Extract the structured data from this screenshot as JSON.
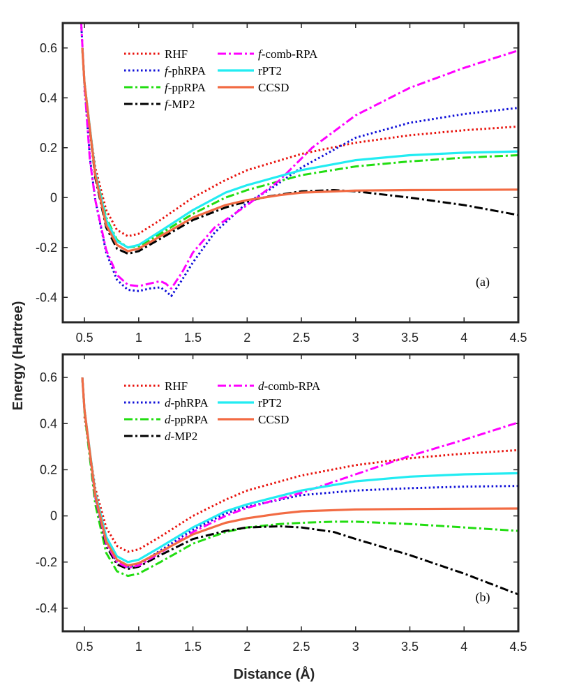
{
  "figure": {
    "ylabel": "Energy (Hartree)",
    "xlabel": "Distance (Å)"
  },
  "chart_data": [
    {
      "type": "line",
      "panel_label": "(a)",
      "xlim": [
        0.3,
        4.5
      ],
      "ylim": [
        -0.5,
        0.7
      ],
      "xticks": [
        0.5,
        1,
        1.5,
        2,
        2.5,
        3,
        3.5,
        4,
        4.5
      ],
      "xtick_labels": [
        "0.5",
        "1",
        "1.5",
        "2",
        "2.5",
        "3",
        "3.5",
        "4",
        "4.5"
      ],
      "yticks": [
        -0.4,
        -0.2,
        0,
        0.2,
        0.4,
        0.6
      ],
      "ytick_labels": [
        "-0.4",
        "-0.2",
        "0",
        "0.2",
        "0.4",
        "0.6"
      ],
      "legend_position": "top-left",
      "series": [
        {
          "name": "RHF",
          "color": "#e8120c",
          "style": "dotted",
          "x": [
            0.5,
            0.6,
            0.7,
            0.8,
            0.9,
            1.0,
            1.2,
            1.5,
            1.8,
            2.0,
            2.5,
            3.0,
            3.5,
            4.0,
            4.5
          ],
          "y": [
            0.43,
            0.12,
            -0.05,
            -0.13,
            -0.155,
            -0.145,
            -0.09,
            0.0,
            0.07,
            0.11,
            0.175,
            0.22,
            0.25,
            0.27,
            0.285
          ]
        },
        {
          "name": "f-phRPA",
          "name_prefix": "f",
          "name_rest": "-phRPA",
          "color": "#1010d8",
          "style": "dotted",
          "x": [
            0.47,
            0.5,
            0.55,
            0.6,
            0.7,
            0.8,
            0.9,
            1.0,
            1.1,
            1.2,
            1.25,
            1.3,
            1.4,
            1.5,
            1.7,
            2.0,
            2.2,
            2.5,
            3.0,
            3.5,
            4.0,
            4.5
          ],
          "y": [
            0.7,
            0.45,
            0.16,
            -0.01,
            -0.22,
            -0.33,
            -0.37,
            -0.375,
            -0.365,
            -0.36,
            -0.375,
            -0.395,
            -0.33,
            -0.26,
            -0.14,
            -0.02,
            0.03,
            0.12,
            0.24,
            0.3,
            0.335,
            0.36
          ]
        },
        {
          "name": "f-ppRPA",
          "name_prefix": "f",
          "name_rest": "-ppRPA",
          "color": "#22dd11",
          "style": "dashdot",
          "x": [
            0.48,
            0.5,
            0.6,
            0.7,
            0.8,
            0.9,
            1.0,
            1.2,
            1.5,
            1.8,
            2.0,
            2.5,
            3.0,
            3.5,
            4.0,
            4.5
          ],
          "y": [
            0.6,
            0.46,
            0.1,
            -0.08,
            -0.17,
            -0.2,
            -0.195,
            -0.145,
            -0.065,
            0.0,
            0.03,
            0.09,
            0.125,
            0.145,
            0.16,
            0.17
          ]
        },
        {
          "name": "f-MP2",
          "name_prefix": "f",
          "name_rest": "-MP2",
          "color": "#000000",
          "style": "dashdot",
          "x": [
            0.48,
            0.5,
            0.6,
            0.7,
            0.8,
            0.9,
            1.0,
            1.2,
            1.5,
            1.8,
            2.0,
            2.2,
            2.5,
            2.8,
            3.0,
            3.5,
            4.0,
            4.5
          ],
          "y": [
            0.6,
            0.46,
            0.08,
            -0.12,
            -0.205,
            -0.225,
            -0.215,
            -0.165,
            -0.09,
            -0.04,
            -0.015,
            0.005,
            0.025,
            0.03,
            0.025,
            0.0,
            -0.03,
            -0.07
          ]
        },
        {
          "name": "f-comb-RPA",
          "name_prefix": "f",
          "name_rest": "-comb-RPA",
          "color": "#ff00ff",
          "style": "dashdot",
          "x": [
            0.47,
            0.5,
            0.55,
            0.6,
            0.7,
            0.8,
            0.9,
            1.0,
            1.1,
            1.2,
            1.25,
            1.3,
            1.4,
            1.5,
            1.7,
            2.0,
            2.3,
            2.6,
            3.0,
            3.5,
            4.0,
            4.5
          ],
          "y": [
            0.7,
            0.45,
            0.15,
            -0.01,
            -0.21,
            -0.31,
            -0.35,
            -0.355,
            -0.345,
            -0.335,
            -0.345,
            -0.365,
            -0.3,
            -0.22,
            -0.12,
            -0.03,
            0.07,
            0.2,
            0.33,
            0.44,
            0.52,
            0.59
          ]
        },
        {
          "name": "rPT2",
          "color": "#22ecf2",
          "style": "solid",
          "x": [
            0.48,
            0.5,
            0.6,
            0.7,
            0.8,
            0.9,
            1.0,
            1.2,
            1.5,
            1.8,
            2.0,
            2.5,
            3.0,
            3.5,
            4.0,
            4.5
          ],
          "y": [
            0.6,
            0.46,
            0.1,
            -0.09,
            -0.175,
            -0.2,
            -0.19,
            -0.135,
            -0.05,
            0.02,
            0.05,
            0.11,
            0.15,
            0.17,
            0.18,
            0.185
          ]
        },
        {
          "name": "CCSD",
          "color": "#f26b43",
          "style": "solid",
          "x": [
            0.48,
            0.5,
            0.6,
            0.7,
            0.8,
            0.9,
            1.0,
            1.2,
            1.5,
            1.8,
            2.0,
            2.3,
            2.5,
            3.0,
            3.5,
            4.0,
            4.5
          ],
          "y": [
            0.6,
            0.46,
            0.09,
            -0.11,
            -0.19,
            -0.215,
            -0.205,
            -0.155,
            -0.08,
            -0.03,
            -0.01,
            0.01,
            0.02,
            0.028,
            0.03,
            0.031,
            0.032
          ]
        }
      ]
    },
    {
      "type": "line",
      "panel_label": "(b)",
      "xlim": [
        0.3,
        4.5
      ],
      "ylim": [
        -0.5,
        0.7
      ],
      "xticks": [
        0.5,
        1,
        1.5,
        2,
        2.5,
        3,
        3.5,
        4,
        4.5
      ],
      "xtick_labels": [
        "0.5",
        "1",
        "1.5",
        "2",
        "2.5",
        "3",
        "3.5",
        "4",
        "4.5"
      ],
      "yticks": [
        -0.4,
        -0.2,
        0,
        0.2,
        0.4,
        0.6
      ],
      "ytick_labels": [
        "-0.4",
        "-0.2",
        "0",
        "0.2",
        "0.4",
        "0.6"
      ],
      "legend_position": "top-left",
      "series": [
        {
          "name": "RHF",
          "color": "#e8120c",
          "style": "dotted",
          "x": [
            0.5,
            0.6,
            0.7,
            0.8,
            0.9,
            1.0,
            1.2,
            1.5,
            1.8,
            2.0,
            2.5,
            3.0,
            3.5,
            4.0,
            4.5
          ],
          "y": [
            0.43,
            0.12,
            -0.05,
            -0.13,
            -0.155,
            -0.145,
            -0.09,
            0.0,
            0.07,
            0.11,
            0.175,
            0.22,
            0.25,
            0.27,
            0.285
          ]
        },
        {
          "name": "d-phRPA",
          "name_prefix": "d",
          "name_rest": "-phRPA",
          "color": "#1010d8",
          "style": "dotted",
          "x": [
            0.48,
            0.5,
            0.6,
            0.7,
            0.8,
            0.9,
            1.0,
            1.2,
            1.5,
            1.8,
            2.0,
            2.5,
            3.0,
            3.5,
            4.0,
            4.5
          ],
          "y": [
            0.6,
            0.46,
            0.08,
            -0.12,
            -0.2,
            -0.22,
            -0.21,
            -0.15,
            -0.06,
            0.01,
            0.04,
            0.09,
            0.11,
            0.12,
            0.127,
            0.13
          ]
        },
        {
          "name": "d-ppRPA",
          "name_prefix": "d",
          "name_rest": "-ppRPA",
          "color": "#22dd11",
          "style": "dashdot",
          "x": [
            0.48,
            0.5,
            0.6,
            0.7,
            0.8,
            0.9,
            1.0,
            1.2,
            1.5,
            1.8,
            2.0,
            2.3,
            2.5,
            2.8,
            3.0,
            3.5,
            4.0,
            4.5
          ],
          "y": [
            0.6,
            0.45,
            0.05,
            -0.16,
            -0.24,
            -0.26,
            -0.25,
            -0.2,
            -0.12,
            -0.07,
            -0.05,
            -0.035,
            -0.03,
            -0.025,
            -0.025,
            -0.035,
            -0.05,
            -0.065
          ]
        },
        {
          "name": "d-MP2",
          "name_prefix": "d",
          "name_rest": "-MP2",
          "color": "#000000",
          "style": "dashdot",
          "x": [
            0.48,
            0.5,
            0.6,
            0.7,
            0.8,
            0.9,
            1.0,
            1.2,
            1.5,
            1.8,
            2.0,
            2.3,
            2.5,
            2.8,
            3.0,
            3.5,
            4.0,
            4.5
          ],
          "y": [
            0.6,
            0.46,
            0.08,
            -0.13,
            -0.21,
            -0.23,
            -0.22,
            -0.17,
            -0.1,
            -0.065,
            -0.05,
            -0.045,
            -0.05,
            -0.07,
            -0.1,
            -0.17,
            -0.25,
            -0.34
          ]
        },
        {
          "name": "d-comb-RPA",
          "name_prefix": "d",
          "name_rest": "-comb-RPA",
          "color": "#ff00ff",
          "style": "dashdot",
          "x": [
            0.48,
            0.5,
            0.6,
            0.7,
            0.8,
            0.9,
            1.0,
            1.2,
            1.5,
            1.8,
            2.0,
            2.5,
            3.0,
            3.5,
            4.0,
            4.5
          ],
          "y": [
            0.6,
            0.46,
            0.08,
            -0.12,
            -0.2,
            -0.225,
            -0.215,
            -0.16,
            -0.07,
            0.0,
            0.035,
            0.1,
            0.18,
            0.26,
            0.33,
            0.405
          ]
        },
        {
          "name": "rPT2",
          "color": "#22ecf2",
          "style": "solid",
          "x": [
            0.48,
            0.5,
            0.6,
            0.7,
            0.8,
            0.9,
            1.0,
            1.2,
            1.5,
            1.8,
            2.0,
            2.5,
            3.0,
            3.5,
            4.0,
            4.5
          ],
          "y": [
            0.6,
            0.46,
            0.1,
            -0.09,
            -0.175,
            -0.2,
            -0.19,
            -0.135,
            -0.05,
            0.02,
            0.05,
            0.11,
            0.15,
            0.17,
            0.18,
            0.185
          ]
        },
        {
          "name": "CCSD",
          "color": "#f26b43",
          "style": "solid",
          "x": [
            0.48,
            0.5,
            0.6,
            0.7,
            0.8,
            0.9,
            1.0,
            1.2,
            1.5,
            1.8,
            2.0,
            2.3,
            2.5,
            3.0,
            3.5,
            4.0,
            4.5
          ],
          "y": [
            0.6,
            0.46,
            0.09,
            -0.11,
            -0.19,
            -0.215,
            -0.205,
            -0.155,
            -0.08,
            -0.03,
            -0.01,
            0.01,
            0.02,
            0.028,
            0.03,
            0.031,
            0.032
          ]
        }
      ]
    }
  ]
}
